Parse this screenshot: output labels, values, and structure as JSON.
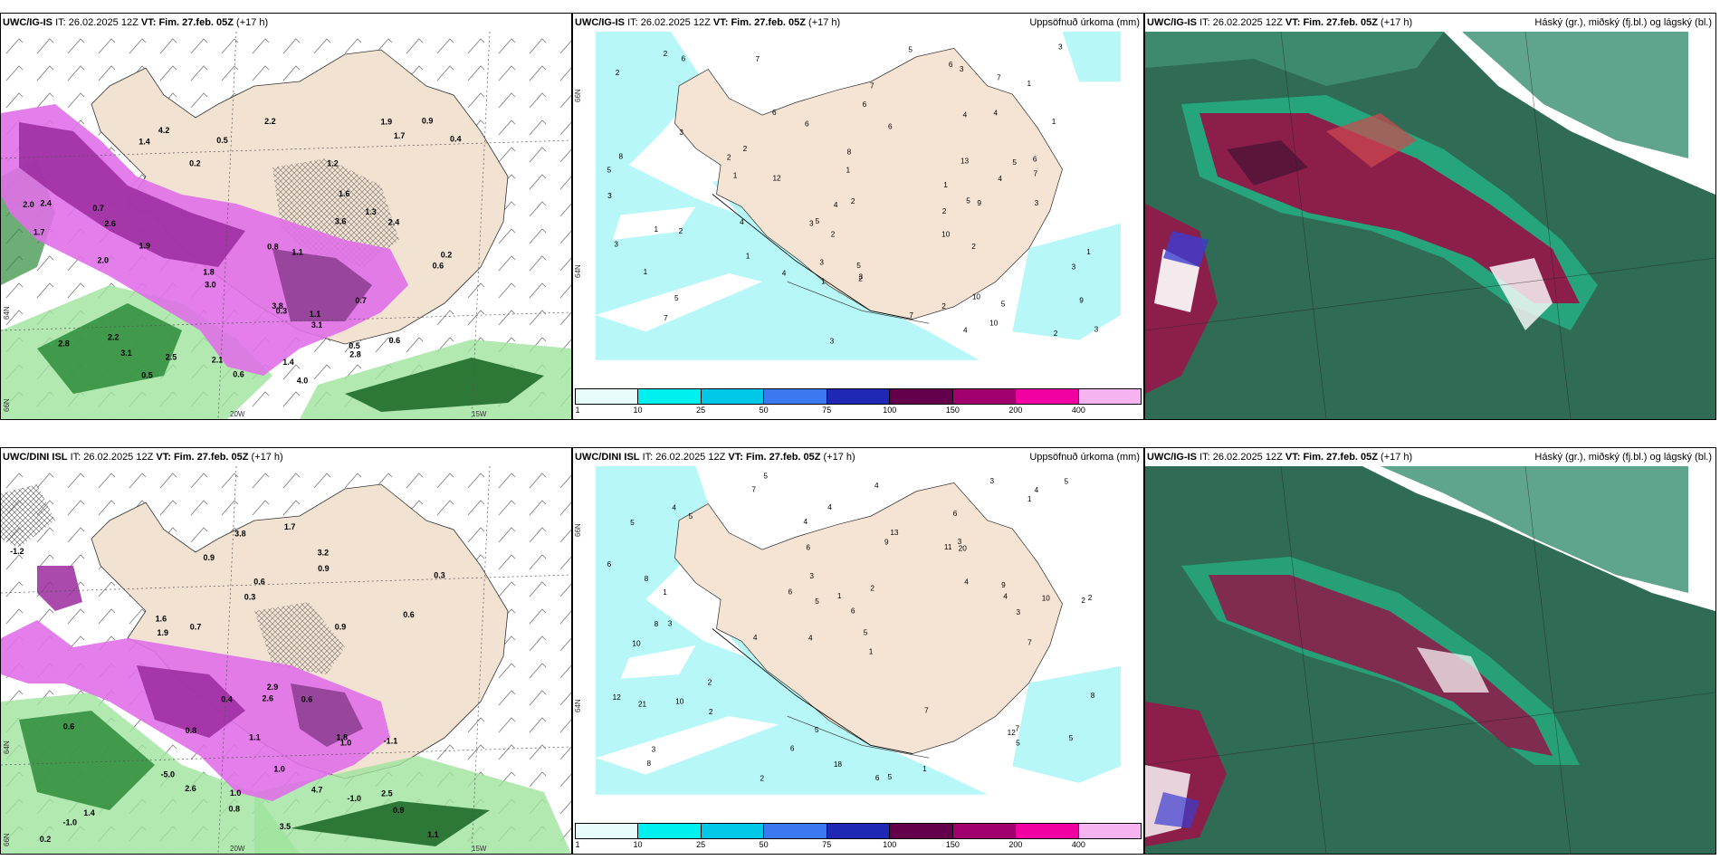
{
  "rows": [
    {
      "model": "UWC/IG-IS",
      "it_label": "IT:",
      "it_value": "26.02.2025 12Z",
      "vt_label": "VT:",
      "vt_value": "Fim. 27.feb. 05Z",
      "lead": "(+17 h)"
    },
    {
      "model": "UWC/DINI ISL",
      "it_label": "IT:",
      "it_value": "26.02.2025 12Z",
      "vt_label": "VT:",
      "vt_value": "Fim. 27.feb. 05Z",
      "lead": "(+17 h)"
    }
  ],
  "cloud_panel_model": "UWC/IG-IS",
  "precip_title": "Uppsöfnuð úrkoma (mm)",
  "cloud_title": "Háský (gr.), miðský (fj.bl.) og lágský (bl.)",
  "colorbar": {
    "ticks": [
      "1",
      "10",
      "25",
      "50",
      "75",
      "100",
      "150",
      "200",
      "400"
    ],
    "colors": [
      "#e8fbfb",
      "#00f0f0",
      "#00c8e6",
      "#3c78f0",
      "#1e28b4",
      "#64004b",
      "#a0006e",
      "#f000a0",
      "#f5b4f0"
    ]
  },
  "axis_labels": {
    "lon_20w": "20W",
    "lon_15w": "15W",
    "lat_66n": "66N",
    "lat_64n": "64N",
    "lat_62n": "62N"
  },
  "temp_values_top": [
    "4.0",
    "1.4",
    "2.2",
    "0.7",
    "1.3",
    "1.4",
    "0.6",
    "1.9",
    "3.0",
    "3.1",
    "2.8",
    "2.0",
    "1.8",
    "3.8",
    "3.6",
    "1.9",
    "1.7",
    "1.7",
    "0.7",
    "2.4",
    "0.5",
    "0.3",
    "0.5",
    "2.8",
    "1.1",
    "1.6",
    "2.0",
    "2.6",
    "0.6",
    "0.2",
    "3.1",
    "0.9",
    "1.2",
    "2.5",
    "4.2",
    "2.1",
    "2.2",
    "2.4",
    "0.2",
    "1.1",
    "0.5",
    "0.8",
    "0.4",
    "0.6"
  ],
  "temp_values_bottom": [
    "-1.0",
    "-1.1",
    "2.9",
    "1.1",
    "0.9",
    "1.7",
    "2.5",
    "3.2",
    "-1.0",
    "-5.0",
    "1.1",
    "1.9",
    "2.6",
    "3.8",
    "4.7",
    "1.6",
    "1.8",
    "0.6",
    "0.4",
    "0.3",
    "-1.2",
    "1.4",
    "0.8",
    "0.6",
    "1.0",
    "0.9",
    "0.7",
    "0.3",
    "0.6",
    "1.0",
    "0.9",
    "0.8",
    "0.6",
    "0.2",
    "2.6",
    "3.5",
    "1.0",
    "0.9"
  ],
  "precip_values_top": [
    "10",
    "1",
    "5",
    "3",
    "2",
    "4",
    "6",
    "8",
    "9",
    "10",
    "5",
    "2",
    "3",
    "2",
    "1",
    "2",
    "1",
    "1",
    "7",
    "6",
    "2",
    "3",
    "13",
    "6",
    "7",
    "5",
    "3",
    "4",
    "3",
    "2",
    "1",
    "5",
    "8",
    "10",
    "12",
    "7",
    "6",
    "2",
    "9",
    "4",
    "5",
    "4",
    "7",
    "3",
    "5",
    "6",
    "3",
    "2",
    "4",
    "6",
    "3",
    "2",
    "1",
    "5",
    "2",
    "1",
    "3",
    "2",
    "4",
    "3",
    "3",
    "1",
    "6",
    "7",
    "2",
    "1",
    "1",
    "4",
    "5",
    "3",
    "7"
  ],
  "precip_values_bottom": [
    "5",
    "6",
    "2",
    "4",
    "1",
    "3",
    "5",
    "11",
    "10",
    "9",
    "6",
    "8",
    "7",
    "4",
    "6",
    "5",
    "5",
    "3",
    "4",
    "2",
    "1",
    "8",
    "2",
    "10",
    "12",
    "8",
    "5",
    "4",
    "7",
    "21",
    "12",
    "13",
    "10",
    "6",
    "7",
    "8",
    "9",
    "6",
    "5",
    "4",
    "3",
    "2",
    "1",
    "4",
    "18",
    "20",
    "5",
    "3",
    "6",
    "5",
    "4",
    "3",
    "2",
    "1",
    "4",
    "2",
    "3",
    "1",
    "4",
    "6",
    "5",
    "7",
    "5"
  ]
}
